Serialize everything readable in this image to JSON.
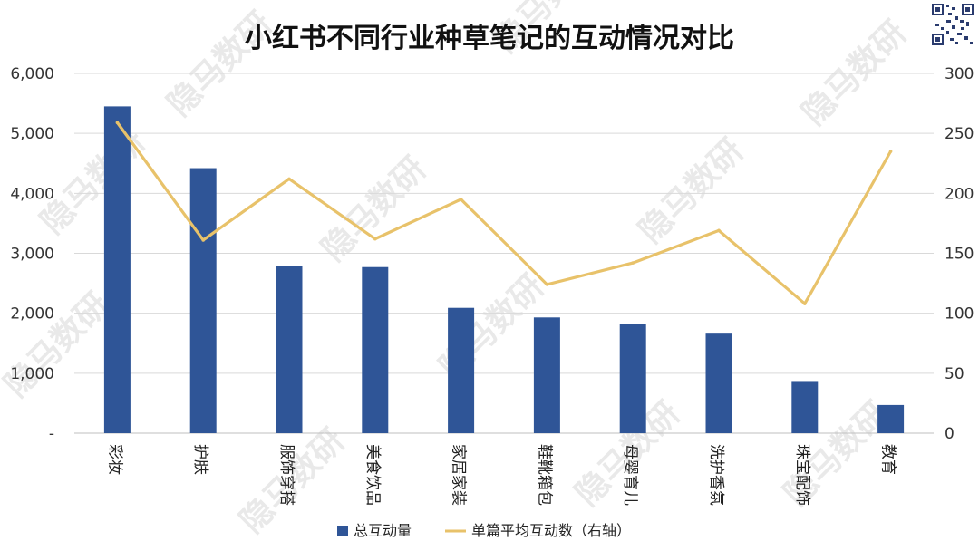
{
  "watermark": "隐马数研",
  "colors": {
    "bar": "#2f5597",
    "line": "#e8c26a",
    "grid": "#d9d9d9",
    "axis": "#bfbfbf"
  },
  "chart_data": {
    "type": "bar",
    "title": "小红书不同行业种草笔记的互动情况对比",
    "categories": [
      "彩妆",
      "护肤",
      "服饰穿搭",
      "美食饮品",
      "家居家装",
      "鞋靴箱包",
      "母婴育儿",
      "洗护香氛",
      "珠宝配饰",
      "教育"
    ],
    "series": [
      {
        "name": "总互动量",
        "type": "bar",
        "axis": "left",
        "values": [
          5450,
          4420,
          2790,
          2770,
          2090,
          1930,
          1820,
          1660,
          870,
          470
        ]
      },
      {
        "name": "单篇平均互动数（右轴）",
        "type": "line",
        "axis": "right",
        "values": [
          259,
          161,
          212,
          162,
          195,
          124,
          142,
          169,
          108,
          235
        ]
      }
    ],
    "y_left": {
      "min": 0,
      "max": 6000,
      "ticks": [
        "-",
        "1,000",
        "2,000",
        "3,000",
        "4,000",
        "5,000",
        "6,000"
      ]
    },
    "y_right": {
      "min": 0,
      "max": 300,
      "ticks": [
        "0",
        "50",
        "100",
        "150",
        "200",
        "250",
        "300"
      ]
    },
    "grid": true,
    "legend_position": "bottom"
  }
}
